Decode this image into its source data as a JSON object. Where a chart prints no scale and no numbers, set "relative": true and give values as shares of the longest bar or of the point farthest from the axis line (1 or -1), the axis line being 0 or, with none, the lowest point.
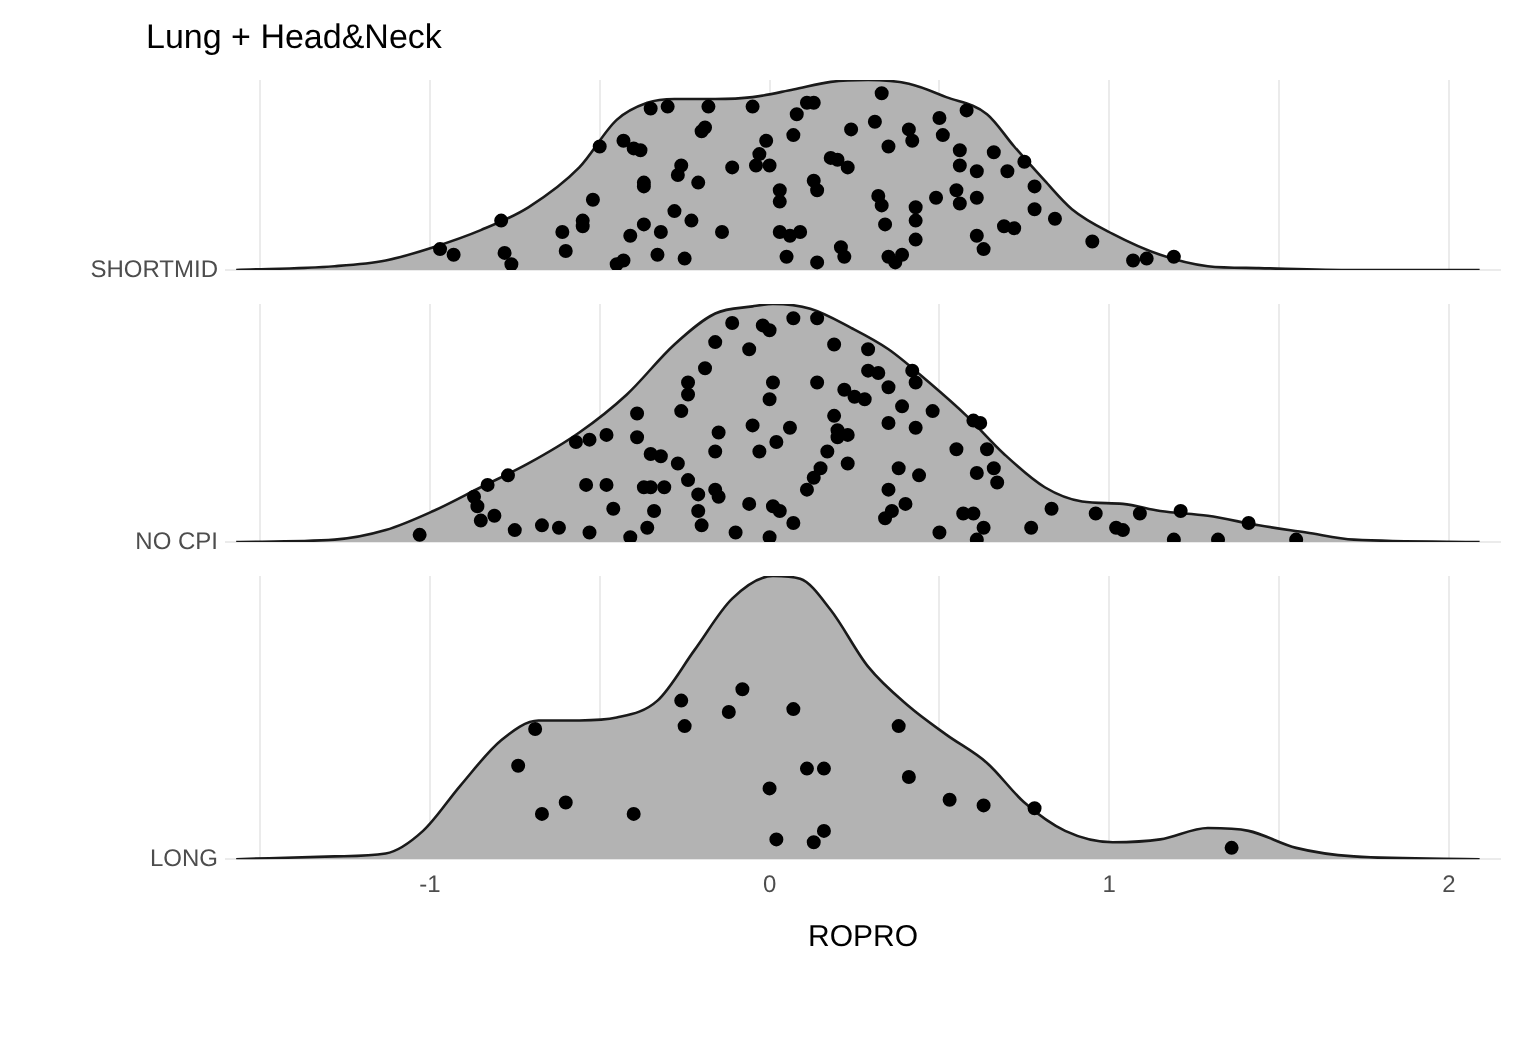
{
  "chart_data": [
    {
      "type": "area",
      "title": "Lung + Head&Neck",
      "ylabel": "SHORTMID",
      "relative": true,
      "xlim": [
        -1.6,
        2.15
      ],
      "xticks": [
        {
          "value": -1.5,
          "label": null
        },
        -1,
        {
          "value": -0.5,
          "label": null
        },
        0,
        {
          "value": 0.5,
          "label": null
        },
        1,
        {
          "value": 1.5,
          "label": null
        },
        2
      ],
      "grid": "x",
      "tick_labels": false,
      "series": [
        {
          "type": "area",
          "color": "#b3b3b3",
          "x": [
            -1.57,
            -1.28,
            -1.13,
            -0.99,
            -0.85,
            -0.71,
            -0.56,
            -0.45,
            -0.36,
            -0.28,
            -0.16,
            -0.05,
            0.07,
            0.18,
            0.29,
            0.41,
            0.52,
            0.64,
            0.72,
            0.81,
            0.89,
            1.01,
            1.15,
            1.29,
            1.44,
            1.72,
            2.09
          ],
          "values": [
            0,
            0.02,
            0.05,
            0.12,
            0.21,
            0.33,
            0.54,
            0.79,
            0.88,
            0.9,
            0.9,
            0.91,
            0.95,
            0.99,
            1,
            0.98,
            0.91,
            0.82,
            0.65,
            0.47,
            0.32,
            0.19,
            0.08,
            0.02,
            0.01,
            0,
            0
          ]
        },
        {
          "type": "scatter",
          "marker": "circle",
          "color": "#000000",
          "x": [
            -0.97,
            -0.93,
            -0.79,
            -0.78,
            -0.76,
            -0.61,
            -0.6,
            -0.55,
            -0.55,
            -0.52,
            -0.5,
            -0.43,
            -0.4,
            -0.38,
            -0.45,
            -0.43,
            -0.41,
            -0.37,
            -0.37,
            -0.37,
            -0.32,
            -0.33,
            -0.35,
            -0.3,
            -0.26,
            -0.27,
            -0.23,
            -0.28,
            -0.25,
            -0.21,
            -0.2,
            -0.19,
            -0.18,
            -0.14,
            -0.11,
            -0.05,
            -0.04,
            -0.03,
            -0.01,
            0,
            0.03,
            0.03,
            0.03,
            0.05,
            0.06,
            0.07,
            0.09,
            0.08,
            0.11,
            0.13,
            0.13,
            0.14,
            0.14,
            0.18,
            0.2,
            0.21,
            0.22,
            0.23,
            0.24,
            0.31,
            0.32,
            0.33,
            0.33,
            0.35,
            0.34,
            0.35,
            0.37,
            0.39,
            0.41,
            0.42,
            0.43,
            0.43,
            0.43,
            0.49,
            0.5,
            0.51,
            0.55,
            0.56,
            0.56,
            0.56,
            0.58,
            0.61,
            0.61,
            0.61,
            0.63,
            0.66,
            0.69,
            0.7,
            0.72,
            0.75,
            0.78,
            0.78,
            0.84,
            0.95,
            1.07,
            1.11,
            1.19
          ],
          "values": [
            0.11,
            0.08,
            0.26,
            0.09,
            0.03,
            0.2,
            0.1,
            0.23,
            0.26,
            0.37,
            0.65,
            0.68,
            0.64,
            0.63,
            0.03,
            0.05,
            0.18,
            0.46,
            0.44,
            0.24,
            0.2,
            0.08,
            0.85,
            0.86,
            0.55,
            0.5,
            0.26,
            0.31,
            0.06,
            0.46,
            0.73,
            0.75,
            0.86,
            0.2,
            0.54,
            0.86,
            0.55,
            0.61,
            0.68,
            0.55,
            0.42,
            0.36,
            0.2,
            0.07,
            0.18,
            0.71,
            0.2,
            0.82,
            0.88,
            0.88,
            0.47,
            0.42,
            0.04,
            0.59,
            0.58,
            0.12,
            0.07,
            0.54,
            0.74,
            0.78,
            0.39,
            0.34,
            0.93,
            0.65,
            0.24,
            0.07,
            0.04,
            0.08,
            0.74,
            0.68,
            0.26,
            0.16,
            0.33,
            0.38,
            0.8,
            0.71,
            0.42,
            0.63,
            0.55,
            0.35,
            0.84,
            0.38,
            0.52,
            0.18,
            0.11,
            0.62,
            0.23,
            0.52,
            0.22,
            0.57,
            0.44,
            0.32,
            0.27,
            0.15,
            0.05,
            0.06,
            0.07
          ]
        }
      ]
    },
    {
      "type": "area",
      "ylabel": "NO CPI",
      "relative": true,
      "xlim": [
        -1.6,
        2.15
      ],
      "xticks": [
        {
          "value": -1.5,
          "label": null
        },
        -1,
        {
          "value": -0.5,
          "label": null
        },
        0,
        {
          "value": 0.5,
          "label": null
        },
        1,
        {
          "value": 1.5,
          "label": null
        },
        2
      ],
      "grid": "x",
      "tick_labels": false,
      "series": [
        {
          "type": "area",
          "color": "#b3b3b3",
          "x": [
            -1.57,
            -1.28,
            -1.13,
            -0.99,
            -0.85,
            -0.71,
            -0.56,
            -0.42,
            -0.28,
            -0.16,
            -0.05,
            0.01,
            0.12,
            0.24,
            0.35,
            0.47,
            0.58,
            0.69,
            0.81,
            0.92,
            1.04,
            1.15,
            1.29,
            1.44,
            1.58,
            1.72,
            2.09
          ],
          "values": [
            0,
            0.01,
            0.05,
            0.13,
            0.23,
            0.33,
            0.46,
            0.62,
            0.83,
            0.96,
            0.99,
            1,
            0.98,
            0.9,
            0.81,
            0.67,
            0.53,
            0.37,
            0.23,
            0.17,
            0.16,
            0.13,
            0.11,
            0.07,
            0.04,
            0.01,
            0
          ]
        },
        {
          "type": "scatter",
          "marker": "circle",
          "color": "#000000",
          "x": [
            -1.03,
            -0.87,
            -0.86,
            -0.83,
            -0.85,
            -0.81,
            -0.77,
            -0.75,
            -0.67,
            -0.62,
            -0.57,
            -0.53,
            -0.53,
            -0.54,
            -0.48,
            -0.48,
            -0.46,
            -0.41,
            -0.39,
            -0.39,
            -0.37,
            -0.36,
            -0.35,
            -0.34,
            -0.32,
            -0.35,
            -0.31,
            -0.26,
            -0.24,
            -0.24,
            -0.27,
            -0.24,
            -0.21,
            -0.21,
            -0.2,
            -0.19,
            -0.16,
            -0.16,
            -0.15,
            -0.16,
            -0.15,
            -0.11,
            -0.1,
            -0.06,
            -0.05,
            -0.06,
            -0.03,
            -0.02,
            0,
            0,
            0,
            0.02,
            0.01,
            0.03,
            0.01,
            0.06,
            0.07,
            0.07,
            0.11,
            0.13,
            0.14,
            0.15,
            0.14,
            0.17,
            0.19,
            0.19,
            0.2,
            0.2,
            0.23,
            0.23,
            0.22,
            0.25,
            0.28,
            0.29,
            0.29,
            0.32,
            0.35,
            0.35,
            0.34,
            0.35,
            0.36,
            0.38,
            0.39,
            0.4,
            0.42,
            0.43,
            0.43,
            0.44,
            0.48,
            0.5,
            0.55,
            0.57,
            0.6,
            0.6,
            0.61,
            0.61,
            0.62,
            0.63,
            0.64,
            0.66,
            0.67,
            0.77,
            0.83,
            0.96,
            1.02,
            1.04,
            1.09,
            1.19,
            1.21,
            1.32,
            1.41,
            1.55
          ],
          "values": [
            0.03,
            0.19,
            0.15,
            0.24,
            0.09,
            0.11,
            0.28,
            0.05,
            0.07,
            0.06,
            0.42,
            0.43,
            0.04,
            0.24,
            0.45,
            0.24,
            0.14,
            0.02,
            0.54,
            0.44,
            0.23,
            0.06,
            0.37,
            0.13,
            0.36,
            0.23,
            0.23,
            0.55,
            0.62,
            0.67,
            0.33,
            0.26,
            0.2,
            0.13,
            0.07,
            0.73,
            0.84,
            0.38,
            0.46,
            0.22,
            0.19,
            0.92,
            0.04,
            0.81,
            0.49,
            0.16,
            0.38,
            0.91,
            0.89,
            0.6,
            0.02,
            0.42,
            0.15,
            0.13,
            0.67,
            0.48,
            0.94,
            0.08,
            0.22,
            0.27,
            0.94,
            0.31,
            0.67,
            0.38,
            0.83,
            0.53,
            0.47,
            0.44,
            0.45,
            0.33,
            0.64,
            0.61,
            0.6,
            0.81,
            0.72,
            0.71,
            0.65,
            0.5,
            0.1,
            0.22,
            0.13,
            0.31,
            0.57,
            0.16,
            0.72,
            0.67,
            0.48,
            0.28,
            0.55,
            0.04,
            0.39,
            0.12,
            0.12,
            0.51,
            0.01,
            0.29,
            0.5,
            0.06,
            0.39,
            0.31,
            0.25,
            0.06,
            0.14,
            0.12,
            0.06,
            0.05,
            0.12,
            0.01,
            0.13,
            0.01,
            0.08,
            0.01
          ]
        }
      ]
    },
    {
      "type": "area",
      "ylabel": "LONG",
      "xlabel": "ROPRO",
      "relative": true,
      "xlim": [
        -1.6,
        2.15
      ],
      "xticks": [
        {
          "value": -1.5,
          "label": null
        },
        -1,
        {
          "value": -0.5,
          "label": null
        },
        0,
        {
          "value": 0.5,
          "label": null
        },
        1,
        {
          "value": 1.5,
          "label": null
        },
        2
      ],
      "grid": "x",
      "tick_labels": "x",
      "series": [
        {
          "type": "area",
          "color": "#b3b3b3",
          "x": [
            -1.57,
            -1.28,
            -1.13,
            -1.02,
            -0.91,
            -0.79,
            -0.68,
            -0.56,
            -0.45,
            -0.33,
            -0.22,
            -0.11,
            0.01,
            0.09,
            0.18,
            0.29,
            0.41,
            0.52,
            0.64,
            0.75,
            0.87,
            1.01,
            1.15,
            1.29,
            1.41,
            1.55,
            1.72,
            2.09
          ],
          "values": [
            0,
            0.01,
            0.02,
            0.1,
            0.26,
            0.42,
            0.49,
            0.49,
            0.5,
            0.56,
            0.74,
            0.92,
            1,
            0.99,
            0.88,
            0.68,
            0.54,
            0.44,
            0.34,
            0.2,
            0.1,
            0.06,
            0.07,
            0.11,
            0.1,
            0.04,
            0.01,
            0
          ]
        },
        {
          "type": "scatter",
          "marker": "circle",
          "color": "#000000",
          "x": [
            -0.69,
            -0.74,
            -0.67,
            -0.6,
            -0.4,
            -0.26,
            -0.25,
            -0.12,
            -0.08,
            0,
            0.02,
            0.07,
            0.11,
            0.16,
            0.13,
            0.16,
            0.38,
            0.41,
            0.53,
            0.63,
            0.78,
            1.36
          ],
          "values": [
            0.46,
            0.33,
            0.16,
            0.2,
            0.16,
            0.56,
            0.47,
            0.52,
            0.6,
            0.25,
            0.07,
            0.53,
            0.32,
            0.32,
            0.06,
            0.1,
            0.47,
            0.29,
            0.21,
            0.19,
            0.18,
            0.04
          ]
        }
      ]
    }
  ]
}
